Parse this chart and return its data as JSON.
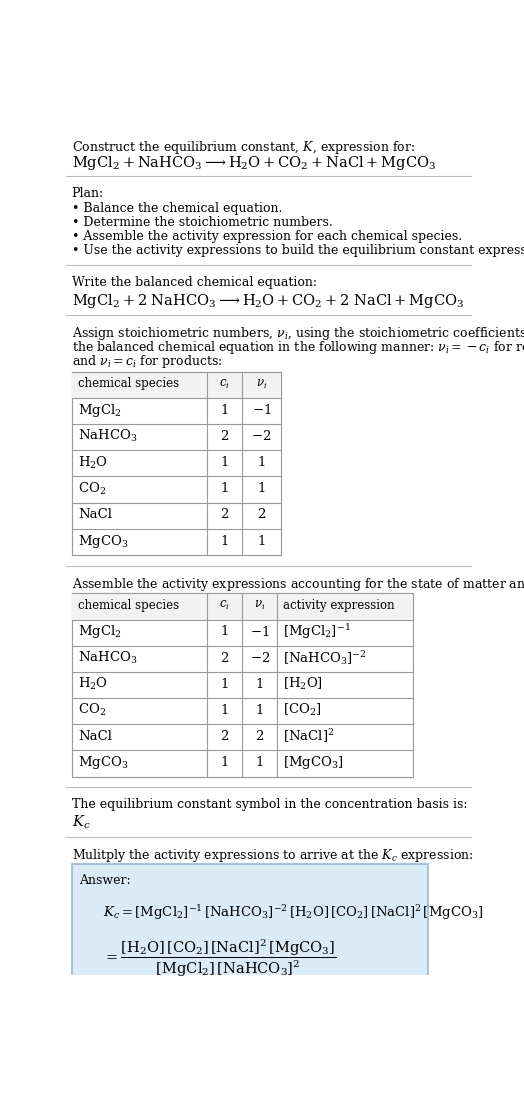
{
  "bg_color": "#ffffff",
  "text_color": "#000000",
  "title_line1": "Construct the equilibrium constant, $K$, expression for:",
  "title_line2": "$\\mathrm{MgCl_2 + NaHCO_3 \\longrightarrow H_2O + CO_2 + NaCl + MgCO_3}$",
  "plan_header": "Plan:",
  "plan_items": [
    "• Balance the chemical equation.",
    "• Determine the stoichiometric numbers.",
    "• Assemble the activity expression for each chemical species.",
    "• Use the activity expressions to build the equilibrium constant expression."
  ],
  "balanced_header": "Write the balanced chemical equation:",
  "balanced_eq": "$\\mathrm{MgCl_2 + 2\\ NaHCO_3 \\longrightarrow H_2O + CO_2 + 2\\ NaCl + MgCO_3}$",
  "stoich_intro_lines": [
    "Assign stoichiometric numbers, $\\nu_i$, using the stoichiometric coefficients, $c_i$, from",
    "the balanced chemical equation in the following manner: $\\nu_i = -c_i$ for reactants",
    "and $\\nu_i = c_i$ for products:"
  ],
  "table1_headers": [
    "chemical species",
    "$c_i$",
    "$\\nu_i$"
  ],
  "table1_rows": [
    [
      "$\\mathrm{MgCl_2}$",
      "1",
      "$-1$"
    ],
    [
      "$\\mathrm{NaHCO_3}$",
      "2",
      "$-2$"
    ],
    [
      "$\\mathrm{H_2O}$",
      "1",
      "1"
    ],
    [
      "$\\mathrm{CO_2}$",
      "1",
      "1"
    ],
    [
      "NaCl",
      "2",
      "2"
    ],
    [
      "$\\mathrm{MgCO_3}$",
      "1",
      "1"
    ]
  ],
  "activity_intro": "Assemble the activity expressions accounting for the state of matter and $\\nu_i$:",
  "table2_headers": [
    "chemical species",
    "$c_i$",
    "$\\nu_i$",
    "activity expression"
  ],
  "table2_rows": [
    [
      "$\\mathrm{MgCl_2}$",
      "1",
      "$-1$",
      "$[\\mathrm{MgCl_2}]^{-1}$"
    ],
    [
      "$\\mathrm{NaHCO_3}$",
      "2",
      "$-2$",
      "$[\\mathrm{NaHCO_3}]^{-2}$"
    ],
    [
      "$\\mathrm{H_2O}$",
      "1",
      "1",
      "$[\\mathrm{H_2O}]$"
    ],
    [
      "$\\mathrm{CO_2}$",
      "1",
      "1",
      "$[\\mathrm{CO_2}]$"
    ],
    [
      "NaCl",
      "2",
      "2",
      "$[\\mathrm{NaCl}]^2$"
    ],
    [
      "$\\mathrm{MgCO_3}$",
      "1",
      "1",
      "$[\\mathrm{MgCO_3}]$"
    ]
  ],
  "kc_header": "The equilibrium constant symbol in the concentration basis is:",
  "kc_symbol": "$K_c$",
  "multiply_header": "Mulitply the activity expressions to arrive at the $K_c$ expression:",
  "answer_label": "Answer:",
  "answer_line1": "$K_c = [\\mathrm{MgCl_2}]^{-1}\\,[\\mathrm{NaHCO_3}]^{-2}\\,[\\mathrm{H_2O}]\\,[\\mathrm{CO_2}]\\,[\\mathrm{NaCl}]^2\\,[\\mathrm{MgCO_3}]$",
  "answer_line2_eq": "$= \\dfrac{[\\mathrm{H_2O}]\\,[\\mathrm{CO_2}]\\,[\\mathrm{NaCl}]^2\\,[\\mathrm{MgCO_3}]}{[\\mathrm{MgCl_2}]\\,[\\mathrm{NaHCO_3}]^2}$",
  "answer_box_color": "#dbeaf7",
  "answer_box_border": "#9ab8d4",
  "divider_color": "#bbbbbb",
  "table_border_color": "#999999",
  "table_header_bg": "#f2f2f2"
}
